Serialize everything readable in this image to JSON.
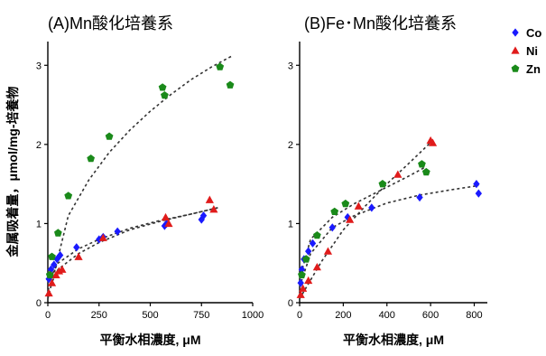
{
  "ylabel": "金属吸着量，μmol/mg-培養物",
  "series_styles": [
    {
      "name": "Co",
      "color": "#1a1aff",
      "marker": "diamond"
    },
    {
      "name": "Ni",
      "color": "#e01b1b",
      "marker": "triangle"
    },
    {
      "name": "Zn",
      "color": "#1a8a1a",
      "marker": "pentagon"
    }
  ],
  "chart_data": [
    {
      "type": "scatter",
      "title": "(A)Mn酸化培養系",
      "xlabel": "平衡水相濃度, μM",
      "ylabel": "金属吸着量，μmol/mg-培養物",
      "xlim": [
        0,
        1000
      ],
      "ylim": [
        0,
        3.3
      ],
      "xticks": [
        "0",
        "250",
        "500",
        "750",
        "1000"
      ],
      "xtick_values": [
        0,
        250,
        500,
        750,
        1000
      ],
      "yticks": [
        "0",
        "1",
        "2",
        "3"
      ],
      "ytick_values": [
        0,
        1,
        2,
        3
      ],
      "series": [
        {
          "name": "Co",
          "x": [
            5,
            15,
            30,
            45,
            60,
            140,
            250,
            270,
            340,
            570,
            580,
            750,
            760
          ],
          "y": [
            0.3,
            0.42,
            0.48,
            0.55,
            0.6,
            0.7,
            0.8,
            0.83,
            0.9,
            0.97,
            1.0,
            1.05,
            1.1
          ]
        },
        {
          "name": "Ni",
          "x": [
            5,
            20,
            40,
            55,
            70,
            150,
            270,
            575,
            590,
            790,
            810
          ],
          "y": [
            0.12,
            0.25,
            0.35,
            0.4,
            0.42,
            0.58,
            0.82,
            1.08,
            1.0,
            1.3,
            1.18
          ]
        },
        {
          "name": "Zn",
          "x": [
            10,
            20,
            50,
            100,
            210,
            300,
            560,
            570,
            840,
            890
          ],
          "y": [
            0.35,
            0.58,
            0.88,
            1.35,
            1.82,
            2.1,
            2.72,
            2.62,
            2.98,
            2.75
          ]
        }
      ],
      "fits": [
        {
          "x": [
            0,
            100,
            200,
            300,
            400,
            500,
            600,
            700,
            800,
            900
          ],
          "y": [
            0.05,
            1.1,
            1.55,
            1.9,
            2.18,
            2.42,
            2.63,
            2.82,
            2.98,
            3.12
          ]
        },
        {
          "x": [
            0,
            50,
            150,
            250,
            400,
            550,
            700,
            830
          ],
          "y": [
            0.25,
            0.5,
            0.68,
            0.8,
            0.94,
            1.04,
            1.12,
            1.2
          ]
        },
        {
          "x": [
            0,
            50,
            150,
            250,
            400,
            550,
            700,
            830
          ],
          "y": [
            0.15,
            0.42,
            0.62,
            0.76,
            0.92,
            1.03,
            1.12,
            1.2
          ]
        }
      ]
    },
    {
      "type": "scatter",
      "title": "(B)Fe･Mn酸化培養系",
      "xlabel": "平衡水相濃度, μM",
      "ylabel": "",
      "xlim": [
        0,
        860
      ],
      "ylim": [
        0,
        3.3
      ],
      "xticks": [
        "0",
        "200",
        "400",
        "600",
        "800"
      ],
      "xtick_values": [
        0,
        200,
        400,
        600,
        800
      ],
      "yticks": [
        "0",
        "1",
        "2",
        "3"
      ],
      "ytick_values": [
        0,
        1,
        2,
        3
      ],
      "legend": "top-right",
      "series": [
        {
          "name": "Co",
          "x": [
            5,
            10,
            20,
            40,
            60,
            150,
            220,
            330,
            550,
            810,
            820
          ],
          "y": [
            0.25,
            0.42,
            0.55,
            0.65,
            0.75,
            0.95,
            1.08,
            1.2,
            1.33,
            1.5,
            1.38
          ]
        },
        {
          "name": "Ni",
          "x": [
            5,
            15,
            40,
            80,
            130,
            230,
            270,
            450,
            600,
            610
          ],
          "y": [
            0.1,
            0.18,
            0.28,
            0.45,
            0.65,
            1.05,
            1.22,
            1.62,
            2.05,
            2.02
          ]
        },
        {
          "name": "Zn",
          "x": [
            10,
            30,
            80,
            160,
            210,
            380,
            560,
            580
          ],
          "y": [
            0.35,
            0.55,
            0.85,
            1.15,
            1.25,
            1.5,
            1.75,
            1.65
          ]
        }
      ],
      "fits": [
        {
          "x": [
            0,
            50,
            150,
            250,
            400,
            550,
            700,
            820
          ],
          "y": [
            0.2,
            0.62,
            0.95,
            1.1,
            1.26,
            1.36,
            1.43,
            1.48
          ]
        },
        {
          "x": [
            0,
            100,
            200,
            300,
            400,
            500,
            610
          ],
          "y": [
            0.05,
            0.52,
            0.92,
            1.22,
            1.5,
            1.76,
            2.05
          ]
        },
        {
          "x": [
            0,
            50,
            150,
            250,
            400,
            500,
            580
          ],
          "y": [
            0.3,
            0.8,
            1.08,
            1.25,
            1.46,
            1.6,
            1.72
          ]
        }
      ]
    }
  ]
}
